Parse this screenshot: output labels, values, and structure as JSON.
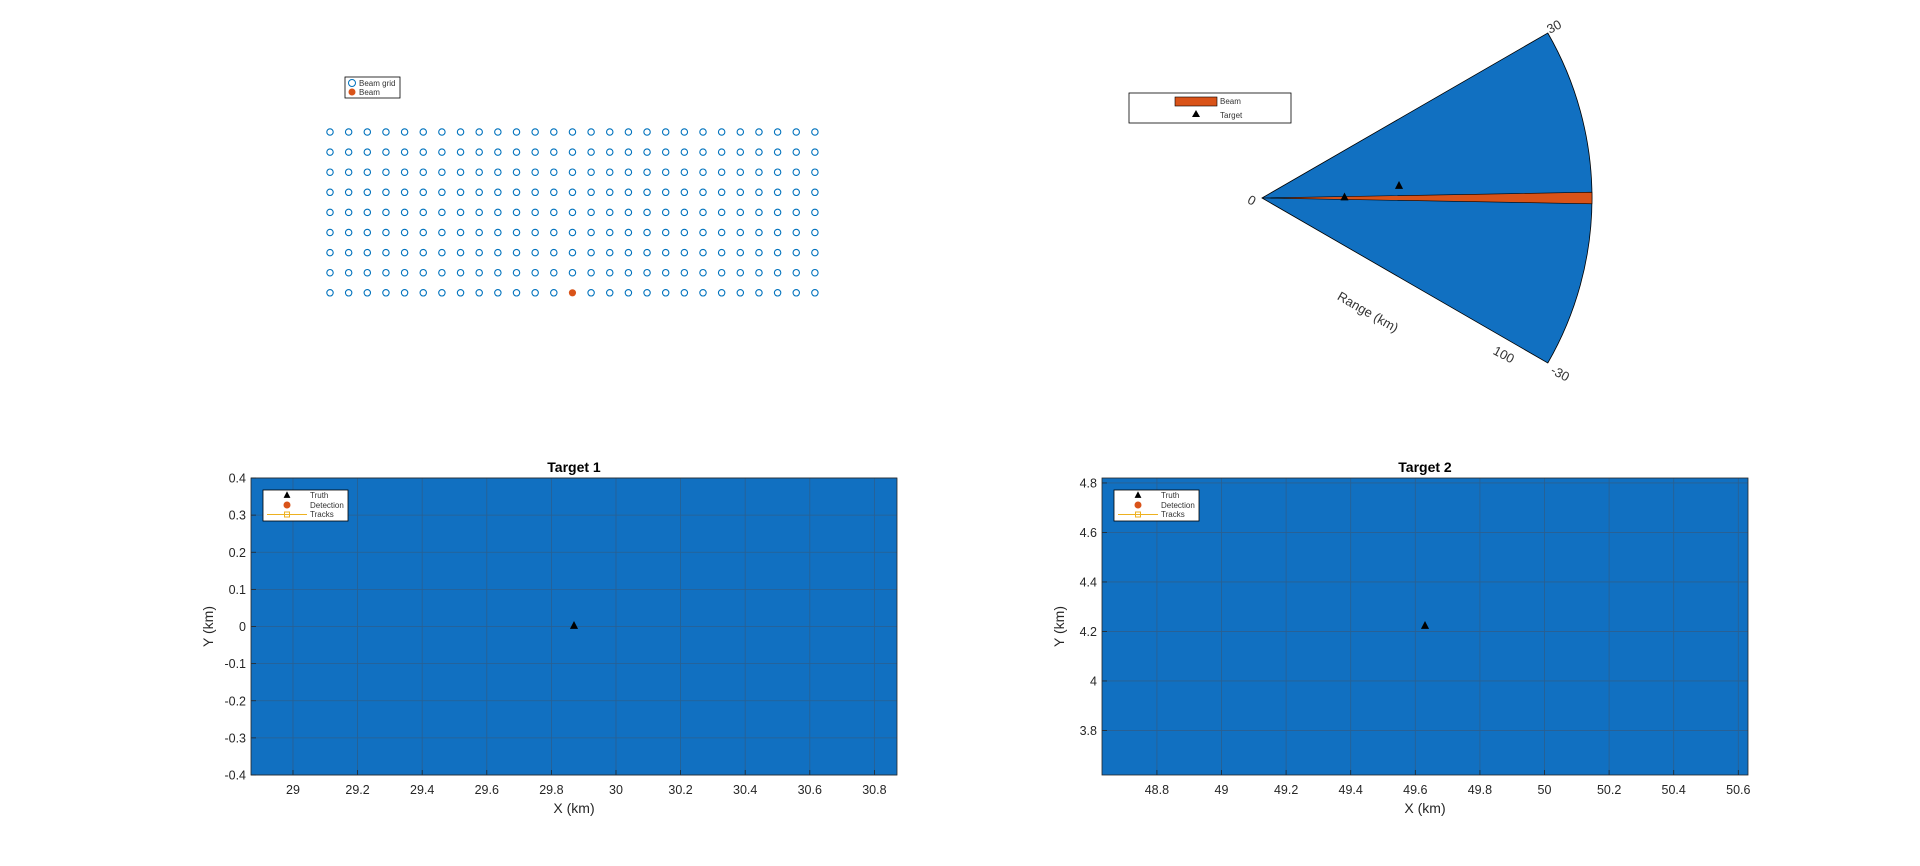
{
  "colors": {
    "blue": "#1170c1",
    "orange": "#d95319",
    "gridline": "#2b5f8f",
    "track": "#edb120",
    "truth": "#000000",
    "beam_grid_marker": "#0072bd"
  },
  "chart_data": [
    {
      "id": "beam-grid",
      "type": "scatter",
      "title": "",
      "grid": false,
      "legend": {
        "placement": "top-left",
        "entries": [
          "Beam grid",
          "Beam"
        ]
      },
      "series": [
        {
          "name": "Beam grid",
          "marker": "open-circle",
          "columns": 27,
          "rows": 9
        },
        {
          "name": "Beam",
          "marker": "filled-circle",
          "column": 14,
          "row": 9
        }
      ]
    },
    {
      "id": "polar-sector",
      "type": "area",
      "title": "",
      "legend": {
        "placement": "top-left",
        "entries": [
          "Beam",
          "Target"
        ]
      },
      "theta_ticks": [
        "30",
        "-30"
      ],
      "radius_ticks": [
        "0",
        "100"
      ],
      "radius_label": "Range (km)",
      "theta_range_deg": [
        -30,
        30
      ],
      "radius_range_km": [
        0,
        120
      ],
      "beam_sector_deg": [
        -1,
        1
      ],
      "targets": [
        {
          "range_km": 30,
          "angle_deg": 0
        },
        {
          "range_km": 50,
          "angle_deg": 4.8
        }
      ]
    },
    {
      "id": "target-1",
      "type": "scatter",
      "title": "Target 1",
      "xlabel": "X (km)",
      "ylabel": "Y (km)",
      "xlim": [
        28.87,
        30.87
      ],
      "ylim": [
        -0.4,
        0.4
      ],
      "xticks": [
        "29",
        "29.2",
        "29.4",
        "29.6",
        "29.8",
        "30",
        "30.2",
        "30.4",
        "30.6",
        "30.8"
      ],
      "yticks": [
        "0.4",
        "0.3",
        "0.2",
        "0.1",
        "0",
        "-0.1",
        "-0.2",
        "-0.3",
        "-0.4"
      ],
      "grid": true,
      "legend": {
        "placement": "top-left",
        "entries": [
          "Truth",
          "Detection",
          "Tracks"
        ]
      },
      "series": [
        {
          "name": "Truth",
          "x": [
            29.87
          ],
          "y": [
            0
          ]
        }
      ]
    },
    {
      "id": "target-2",
      "type": "scatter",
      "title": "Target 2",
      "xlabel": "X (km)",
      "ylabel": "Y (km)",
      "xlim": [
        48.63,
        50.63
      ],
      "ylim": [
        3.62,
        4.82
      ],
      "xticks": [
        "48.8",
        "49",
        "49.2",
        "49.4",
        "49.6",
        "49.8",
        "50",
        "50.2",
        "50.4",
        "50.6"
      ],
      "yticks": [
        "4.8",
        "4.6",
        "4.4",
        "4.2",
        "4",
        "3.8"
      ],
      "grid": true,
      "legend": {
        "placement": "top-left",
        "entries": [
          "Truth",
          "Detection",
          "Tracks"
        ]
      },
      "series": [
        {
          "name": "Truth",
          "x": [
            49.63
          ],
          "y": [
            4.22
          ]
        }
      ]
    }
  ]
}
